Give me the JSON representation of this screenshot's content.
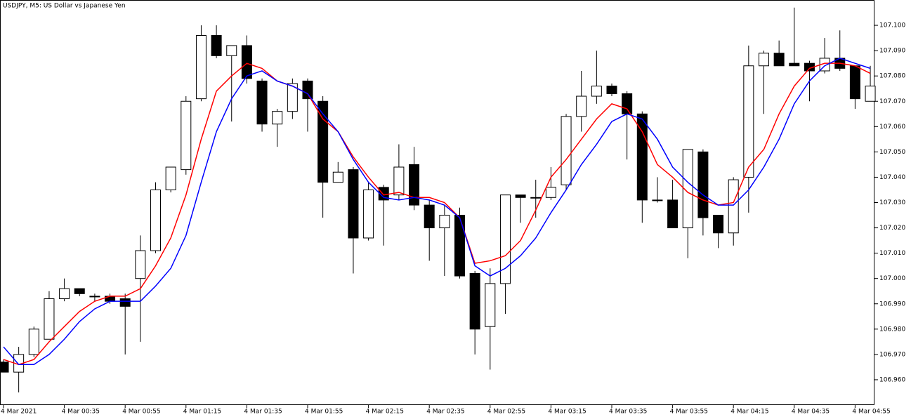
{
  "chart_data": {
    "type": "candlestick",
    "title": "USDJPY, M5:  US Dollar vs Japanese Yen",
    "categories": [
      "4 Mar 2021",
      null,
      null,
      null,
      "4 Mar 00:35",
      null,
      null,
      null,
      "4 Mar 00:55",
      null,
      null,
      null,
      "4 Mar 01:15",
      null,
      null,
      null,
      "4 Mar 01:35",
      null,
      null,
      null,
      "4 Mar 01:55",
      null,
      null,
      null,
      "4 Mar 02:15",
      null,
      null,
      null,
      "4 Mar 02:35",
      null,
      null,
      null,
      "4 Mar 02:55",
      null,
      null,
      null,
      "4 Mar 03:15",
      null,
      null,
      null,
      "4 Mar 03:35",
      null,
      null,
      null,
      "4 Mar 03:55",
      null,
      null,
      null,
      "4 Mar 04:15",
      null,
      null,
      null,
      "4 Mar 04:35",
      null,
      null,
      null,
      "4 Mar 04:55",
      null
    ],
    "open": [
      106.967,
      106.963,
      106.97,
      106.976,
      106.992,
      106.996,
      106.993,
      106.993,
      106.992,
      107.0,
      107.011,
      107.035,
      107.043,
      107.071,
      107.096,
      107.088,
      107.092,
      107.078,
      107.061,
      107.066,
      107.078,
      107.07,
      107.038,
      107.043,
      107.016,
      107.036,
      107.033,
      107.045,
      107.029,
      107.02,
      107.025,
      107.002,
      106.981,
      106.998,
      107.033,
      107.032,
      107.032,
      107.037,
      107.064,
      107.072,
      107.076,
      107.073,
      107.065,
      107.031,
      107.031,
      107.02,
      107.05,
      107.025,
      107.018,
      107.04,
      107.084,
      107.089,
      107.085,
      107.085,
      107.082,
      107.087,
      107.084,
      107.07
    ],
    "high": [
      106.968,
      106.973,
      106.981,
      106.995,
      107.0,
      106.996,
      106.994,
      106.994,
      106.994,
      107.017,
      107.038,
      107.044,
      107.072,
      107.1,
      107.1,
      107.092,
      107.096,
      107.079,
      107.067,
      107.079,
      107.079,
      107.072,
      107.046,
      107.044,
      107.038,
      107.037,
      107.053,
      107.052,
      107.031,
      107.029,
      107.028,
      107.003,
      107.004,
      107.033,
      107.033,
      107.039,
      107.044,
      107.065,
      107.082,
      107.09,
      107.077,
      107.074,
      107.066,
      107.04,
      107.039,
      107.051,
      107.051,
      107.025,
      107.04,
      107.092,
      107.09,
      107.094,
      107.107,
      107.086,
      107.095,
      107.098,
      107.084,
      107.084
    ],
    "low": [
      106.963,
      106.955,
      106.969,
      106.976,
      106.991,
      106.993,
      106.991,
      106.99,
      106.97,
      106.975,
      107.01,
      107.034,
      107.041,
      107.07,
      107.087,
      107.062,
      107.077,
      107.058,
      107.052,
      107.063,
      107.058,
      107.024,
      107.038,
      107.002,
      107.015,
      107.013,
      107.031,
      107.027,
      107.007,
      107.001,
      107.0,
      106.97,
      106.964,
      106.986,
      107.022,
      107.024,
      107.031,
      107.035,
      107.058,
      107.069,
      107.072,
      107.047,
      107.022,
      107.03,
      107.02,
      107.008,
      107.017,
      107.012,
      107.013,
      107.026,
      107.065,
      107.084,
      107.084,
      107.07,
      107.081,
      107.082,
      107.067,
      107.07
    ],
    "close": [
      106.963,
      106.97,
      106.98,
      106.992,
      106.996,
      106.994,
      106.993,
      106.991,
      106.989,
      107.011,
      107.035,
      107.044,
      107.07,
      107.096,
      107.088,
      107.092,
      107.079,
      107.061,
      107.066,
      107.077,
      107.071,
      107.038,
      107.042,
      107.016,
      107.035,
      107.031,
      107.044,
      107.029,
      107.02,
      107.025,
      107.001,
      106.98,
      106.998,
      107.033,
      107.032,
      107.032,
      107.036,
      107.064,
      107.072,
      107.076,
      107.073,
      107.065,
      107.031,
      107.031,
      107.02,
      107.051,
      107.024,
      107.018,
      107.039,
      107.084,
      107.089,
      107.084,
      107.084,
      107.082,
      107.087,
      107.083,
      107.071,
      107.076
    ],
    "up_color": "#ffffff",
    "down_color": "#000000",
    "candle_outline": "#000000",
    "series": [
      {
        "color": "#ff0000",
        "values": [
          106.968,
          106.966,
          106.968,
          106.975,
          106.981,
          106.987,
          106.991,
          106.993,
          106.993,
          106.996,
          107.005,
          107.016,
          107.033,
          107.055,
          107.074,
          107.08,
          107.085,
          107.083,
          107.078,
          107.076,
          107.073,
          107.063,
          107.058,
          107.048,
          107.04,
          107.033,
          107.034,
          107.032,
          107.032,
          107.03,
          107.024,
          107.006,
          107.007,
          107.009,
          107.015,
          107.027,
          107.04,
          107.047,
          107.055,
          107.063,
          107.069,
          107.067,
          107.058,
          107.045,
          107.04,
          107.034,
          107.031,
          107.029,
          107.03,
          107.044,
          107.051,
          107.065,
          107.076,
          107.083,
          107.085,
          107.085,
          107.084,
          107.081
        ]
      },
      {
        "color": "#0000ff",
        "values": [
          106.973,
          106.966,
          106.966,
          106.97,
          106.976,
          106.983,
          106.988,
          106.991,
          106.991,
          106.991,
          106.997,
          107.004,
          107.017,
          107.038,
          107.058,
          107.071,
          107.08,
          107.082,
          107.078,
          107.076,
          107.073,
          107.065,
          107.058,
          107.047,
          107.038,
          107.032,
          107.031,
          107.032,
          107.031,
          107.029,
          107.024,
          107.005,
          107.001,
          107.004,
          107.009,
          107.016,
          107.026,
          107.035,
          107.045,
          107.053,
          107.062,
          107.065,
          107.063,
          107.055,
          107.044,
          107.038,
          107.033,
          107.029,
          107.029,
          107.035,
          107.044,
          107.055,
          107.069,
          107.078,
          107.084,
          107.087,
          107.085,
          107.083
        ]
      }
    ],
    "ylim": [
      106.95,
      107.11
    ],
    "yticks": [
      {
        "value": 106.96,
        "label": "106.960"
      },
      {
        "value": 106.97,
        "label": "106.970"
      },
      {
        "value": 106.98,
        "label": "106.980"
      },
      {
        "value": 106.99,
        "label": "106.990"
      },
      {
        "value": 107.0,
        "label": "107.000"
      },
      {
        "value": 107.01,
        "label": "107.010"
      },
      {
        "value": 107.02,
        "label": "107.020"
      },
      {
        "value": 107.03,
        "label": "107.030"
      },
      {
        "value": 107.04,
        "label": "107.040"
      },
      {
        "value": 107.05,
        "label": "107.050"
      },
      {
        "value": 107.06,
        "label": "107.060"
      },
      {
        "value": 107.07,
        "label": "107.070"
      },
      {
        "value": 107.08,
        "label": "107.080"
      },
      {
        "value": 107.09,
        "label": "107.090"
      },
      {
        "value": 107.1,
        "label": "107.100"
      }
    ]
  }
}
